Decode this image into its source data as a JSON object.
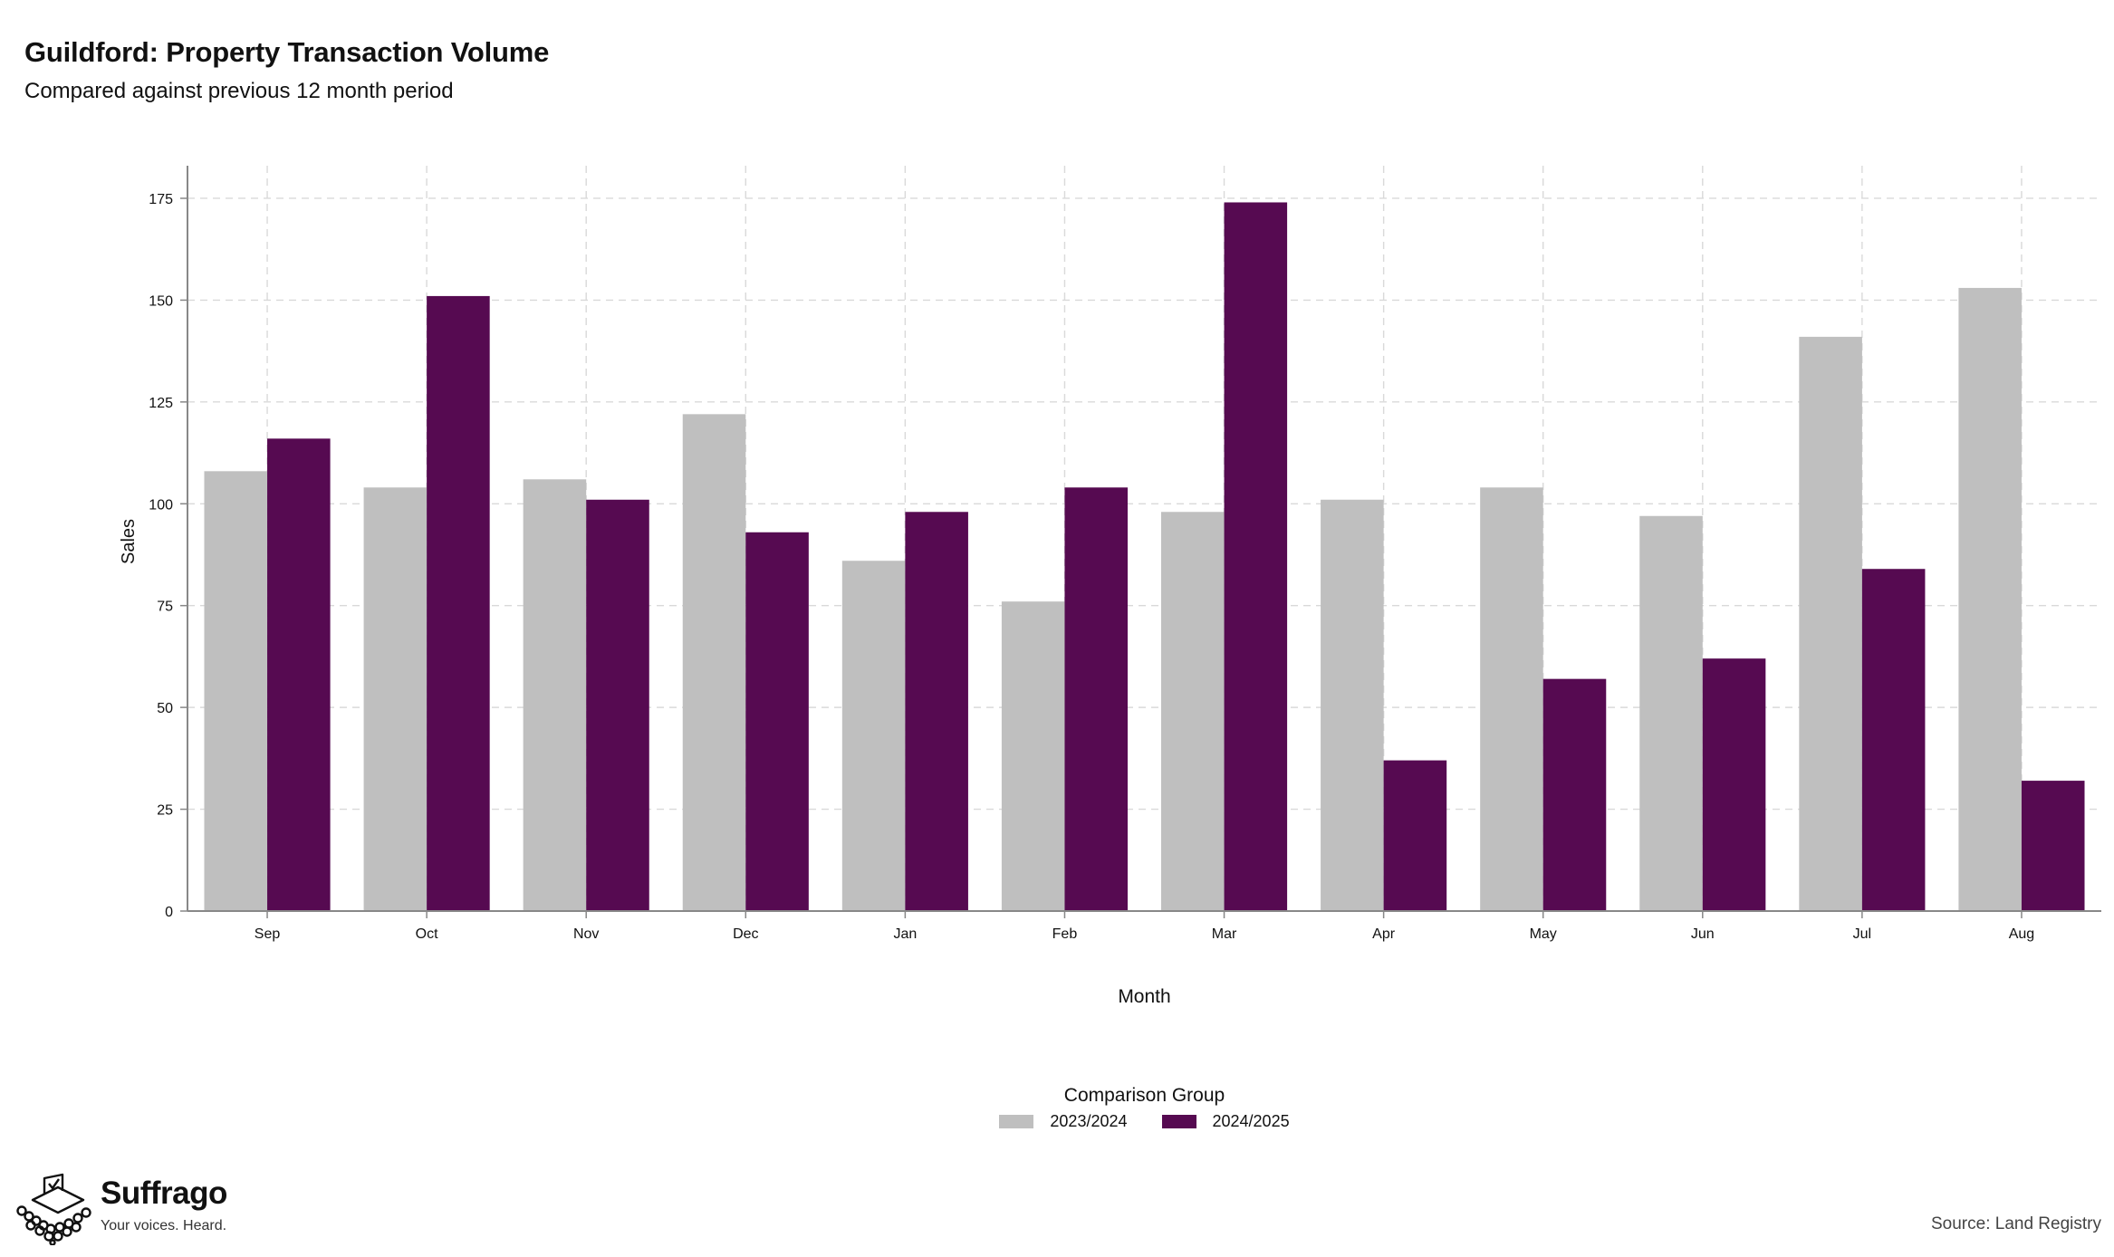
{
  "title": "Guildford: Property Transaction Volume",
  "subtitle": "Compared against previous 12 month period",
  "source": "Source: Land Registry",
  "brand": {
    "name": "Suffrago",
    "tagline": "Your voices. Heard."
  },
  "colors": {
    "series_2023": "#bfbfbf",
    "series_2024": "#560a51",
    "grid": "#d9d9d9",
    "axis": "#888888"
  },
  "chart_data": {
    "type": "bar",
    "xlabel": "Month",
    "ylabel": "Sales",
    "ylim": [
      0,
      183
    ],
    "yticks": [
      0,
      25,
      50,
      75,
      100,
      125,
      150,
      175
    ],
    "grid": true,
    "legend_position": "bottom",
    "legend_title": "Comparison Group",
    "categories": [
      "Sep",
      "Oct",
      "Nov",
      "Dec",
      "Jan",
      "Feb",
      "Mar",
      "Apr",
      "May",
      "Jun",
      "Jul",
      "Aug"
    ],
    "series": [
      {
        "name": "2023/2024",
        "color": "#bfbfbf",
        "values": [
          108,
          104,
          106,
          122,
          86,
          76,
          98,
          101,
          104,
          97,
          141,
          153
        ]
      },
      {
        "name": "2024/2025",
        "color": "#560a51",
        "values": [
          116,
          151,
          101,
          93,
          98,
          104,
          174,
          37,
          57,
          62,
          84,
          32
        ]
      }
    ]
  }
}
